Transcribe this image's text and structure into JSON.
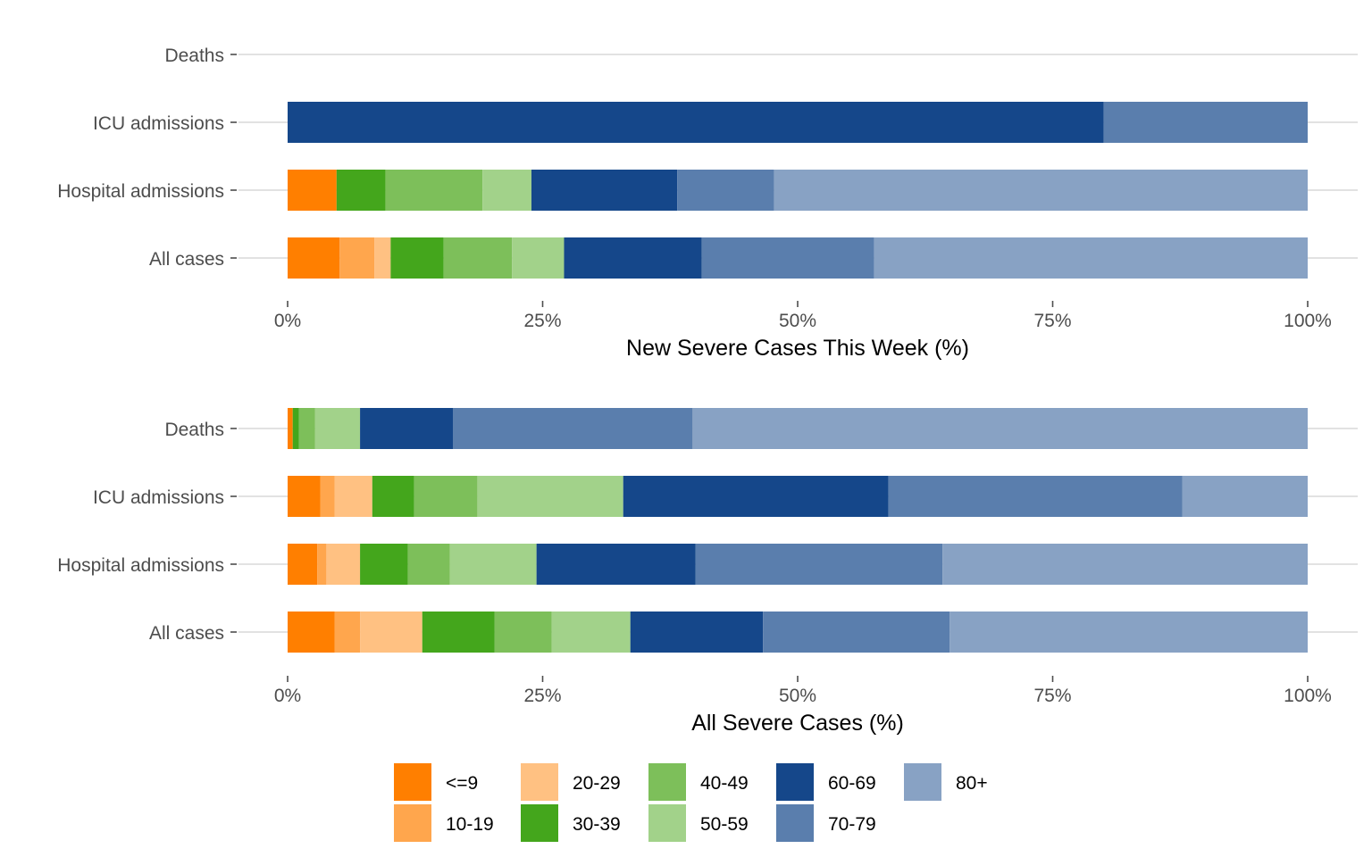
{
  "colors": {
    "<=9": "#FF7F00",
    "10-19": "#FFA64D",
    "20-29": "#FFC182",
    "30-39": "#44A61C",
    "40-49": "#7DBF5A",
    "50-59": "#A2D28A",
    "60-69": "#15478A",
    "70-79": "#5A7EAD",
    "80+": "#88A2C4"
  },
  "chart_data": [
    {
      "type": "bar",
      "orientation": "horizontal",
      "stacked": "percent",
      "xlabel": "New Severe Cases This Week (%)",
      "xlim": [
        0,
        100
      ],
      "x_ticks": [
        "0%",
        "25%",
        "50%",
        "75%",
        "100%"
      ],
      "categories": [
        "Deaths",
        "ICU admissions",
        "Hospital admissions",
        "All cases"
      ],
      "series": [
        {
          "name": "<=9",
          "values": [
            0,
            0,
            4.8,
            5.1
          ]
        },
        {
          "name": "10-19",
          "values": [
            0,
            0,
            0,
            3.4
          ]
        },
        {
          "name": "20-29",
          "values": [
            0,
            0,
            0,
            1.6
          ]
        },
        {
          "name": "30-39",
          "values": [
            0,
            0,
            4.8,
            5.2
          ]
        },
        {
          "name": "40-49",
          "values": [
            0,
            0,
            9.5,
            6.7
          ]
        },
        {
          "name": "50-59",
          "values": [
            0,
            0,
            4.8,
            5.1
          ]
        },
        {
          "name": "60-69",
          "values": [
            0,
            80,
            14.3,
            13.5
          ]
        },
        {
          "name": "70-79",
          "values": [
            0,
            20,
            9.5,
            16.9
          ]
        },
        {
          "name": "80+",
          "values": [
            0,
            0,
            52.3,
            42.5
          ]
        }
      ]
    },
    {
      "type": "bar",
      "orientation": "horizontal",
      "stacked": "percent",
      "xlabel": "All Severe Cases (%)",
      "xlim": [
        0,
        100
      ],
      "x_ticks": [
        "0%",
        "25%",
        "50%",
        "75%",
        "100%"
      ],
      "categories": [
        "Deaths",
        "ICU admissions",
        "Hospital admissions",
        "All cases"
      ],
      "series": [
        {
          "name": "<=9",
          "values": [
            0.5,
            3.2,
            2.9,
            4.6
          ]
        },
        {
          "name": "10-19",
          "values": [
            0,
            1.4,
            0.9,
            2.5
          ]
        },
        {
          "name": "20-29",
          "values": [
            0,
            3.7,
            3.3,
            6.1
          ]
        },
        {
          "name": "30-39",
          "values": [
            0.6,
            4.1,
            4.7,
            7.1
          ]
        },
        {
          "name": "40-49",
          "values": [
            1.6,
            6.2,
            4.1,
            5.6
          ]
        },
        {
          "name": "50-59",
          "values": [
            4.4,
            14.3,
            8.5,
            7.7
          ]
        },
        {
          "name": "60-69",
          "values": [
            9.1,
            26.0,
            15.6,
            13.0
          ]
        },
        {
          "name": "70-79",
          "values": [
            23.5,
            28.8,
            24.2,
            18.3
          ]
        },
        {
          "name": "80+",
          "values": [
            60.3,
            12.3,
            35.8,
            35.1
          ]
        }
      ]
    }
  ],
  "legend": {
    "placement": "bottom",
    "items": [
      "<=9",
      "10-19",
      "20-29",
      "30-39",
      "40-49",
      "50-59",
      "60-69",
      "70-79",
      "80+"
    ]
  }
}
